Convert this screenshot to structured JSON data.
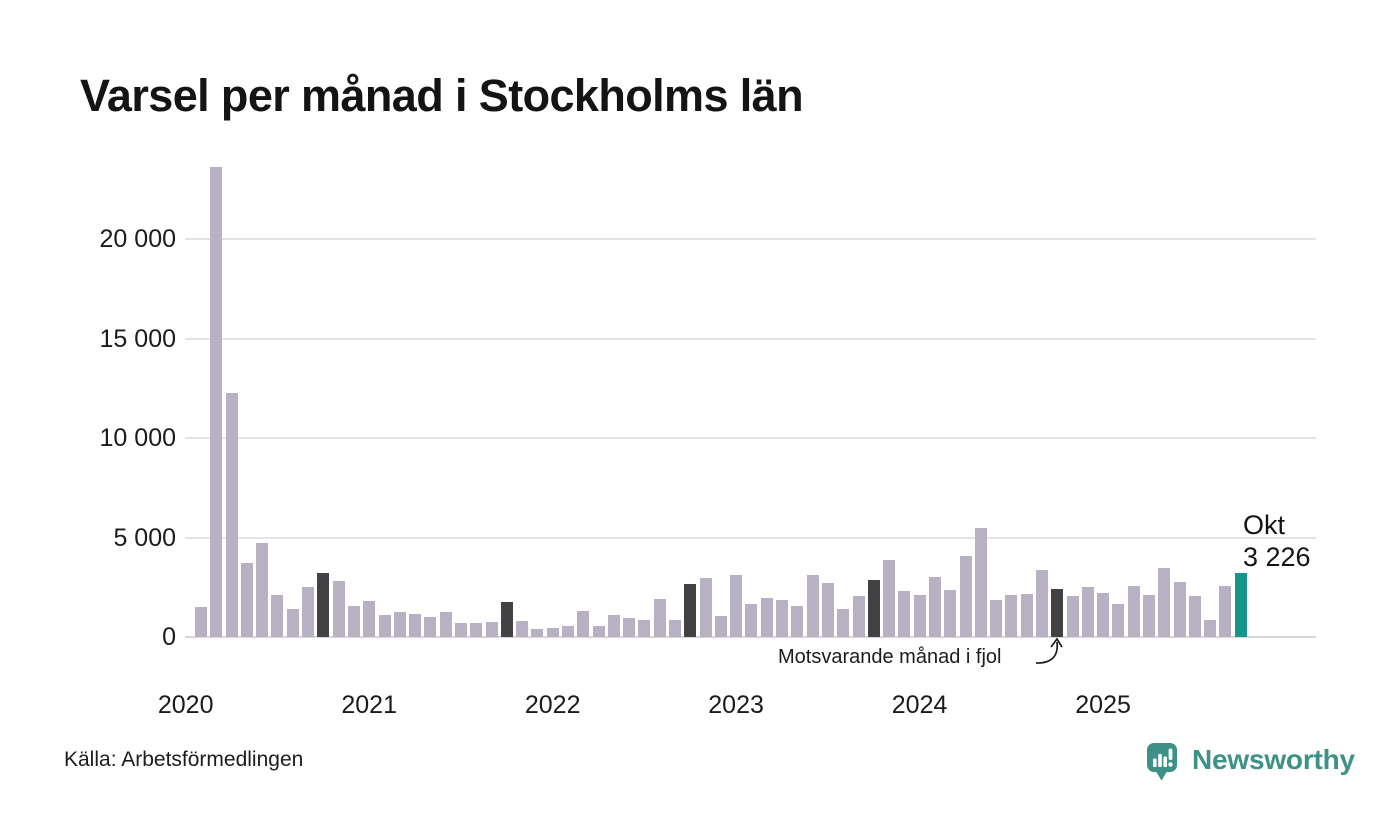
{
  "page": {
    "title": "Varsel per månad i Stockholms län",
    "source": "Källa: Arbetsförmedlingen",
    "brand": "Newsworthy"
  },
  "annotation": {
    "text": "Motsvarande månad i fjol"
  },
  "last_point": {
    "month": "Okt",
    "value": "3 226"
  },
  "colors": {
    "bar": "#b7b1c3",
    "bar_dark": "#424245",
    "bar_accent": "#14968a",
    "grid": "#e3e3e6",
    "brand_teal": "#3e9187",
    "text": "#141414"
  },
  "chart_data": {
    "type": "bar",
    "title": "Varsel per månad i Stockholms län",
    "xlabel": "",
    "ylabel": "",
    "grid": "horizontal",
    "legend_position": "none",
    "ylim": [
      0,
      24000
    ],
    "y_ticks": [
      {
        "value": 0,
        "label": "0"
      },
      {
        "value": 5000,
        "label": "5 000"
      },
      {
        "value": 10000,
        "label": "10 000"
      },
      {
        "value": 15000,
        "label": "15 000"
      },
      {
        "value": 20000,
        "label": "20 000"
      }
    ],
    "x_year_labels": [
      {
        "year": "2020",
        "month_offset": 0
      },
      {
        "year": "2021",
        "month_offset": 12
      },
      {
        "year": "2022",
        "month_offset": 24
      },
      {
        "year": "2023",
        "month_offset": 36
      },
      {
        "year": "2024",
        "month_offset": 48
      },
      {
        "year": "2025",
        "month_offset": 60
      }
    ],
    "x": [
      "Feb 2020",
      "Mar 2020",
      "Apr 2020",
      "Maj 2020",
      "Jun 2020",
      "Jul 2020",
      "Aug 2020",
      "Sep 2020",
      "Okt 2020",
      "Nov 2020",
      "Dec 2020",
      "Jan 2021",
      "Feb 2021",
      "Mar 2021",
      "Apr 2021",
      "Maj 2021",
      "Jun 2021",
      "Jul 2021",
      "Aug 2021",
      "Sep 2021",
      "Okt 2021",
      "Nov 2021",
      "Dec 2021",
      "Jan 2022",
      "Feb 2022",
      "Mar 2022",
      "Apr 2022",
      "Maj 2022",
      "Jun 2022",
      "Jul 2022",
      "Aug 2022",
      "Sep 2022",
      "Okt 2022",
      "Nov 2022",
      "Dec 2022",
      "Jan 2023",
      "Feb 2023",
      "Mar 2023",
      "Apr 2023",
      "Maj 2023",
      "Jun 2023",
      "Jul 2023",
      "Aug 2023",
      "Sep 2023",
      "Okt 2023",
      "Nov 2023",
      "Dec 2023",
      "Jan 2024",
      "Feb 2024",
      "Mar 2024",
      "Apr 2024",
      "Maj 2024",
      "Jun 2024",
      "Jul 2024",
      "Aug 2024",
      "Sep 2024",
      "Okt 2024",
      "Nov 2024",
      "Dec 2024",
      "Jan 2025",
      "Feb 2025",
      "Mar 2025",
      "Apr 2025",
      "Maj 2025",
      "Jun 2025",
      "Jul 2025",
      "Aug 2025",
      "Sep 2025",
      "Okt 2025"
    ],
    "values": [
      1520,
      23600,
      12250,
      3700,
      4700,
      2100,
      1390,
      2530,
      3200,
      2830,
      1550,
      1790,
      1090,
      1260,
      1180,
      1010,
      1260,
      680,
      680,
      760,
      1750,
      790,
      380,
      430,
      550,
      1300,
      560,
      1090,
      930,
      840,
      1920,
      840,
      2670,
      2940,
      1040,
      3130,
      1660,
      1950,
      1840,
      1560,
      3120,
      2700,
      1420,
      2080,
      2880,
      3880,
      2310,
      2120,
      3040,
      2370,
      4070,
      5480,
      1870,
      2090,
      2170,
      3360,
      2420,
      2050,
      2530,
      2200,
      1670,
      2550,
      2090,
      3490,
      2780,
      2050,
      840,
      2580,
      3226
    ],
    "highlight_dark_indices": [
      8,
      20,
      32,
      44,
      56
    ],
    "highlight_dark_meaning": "Motsvarande månad i fjol (oktober varje år)",
    "highlight_accent_index": 68,
    "highlight_accent_label": "Okt 3 226"
  }
}
